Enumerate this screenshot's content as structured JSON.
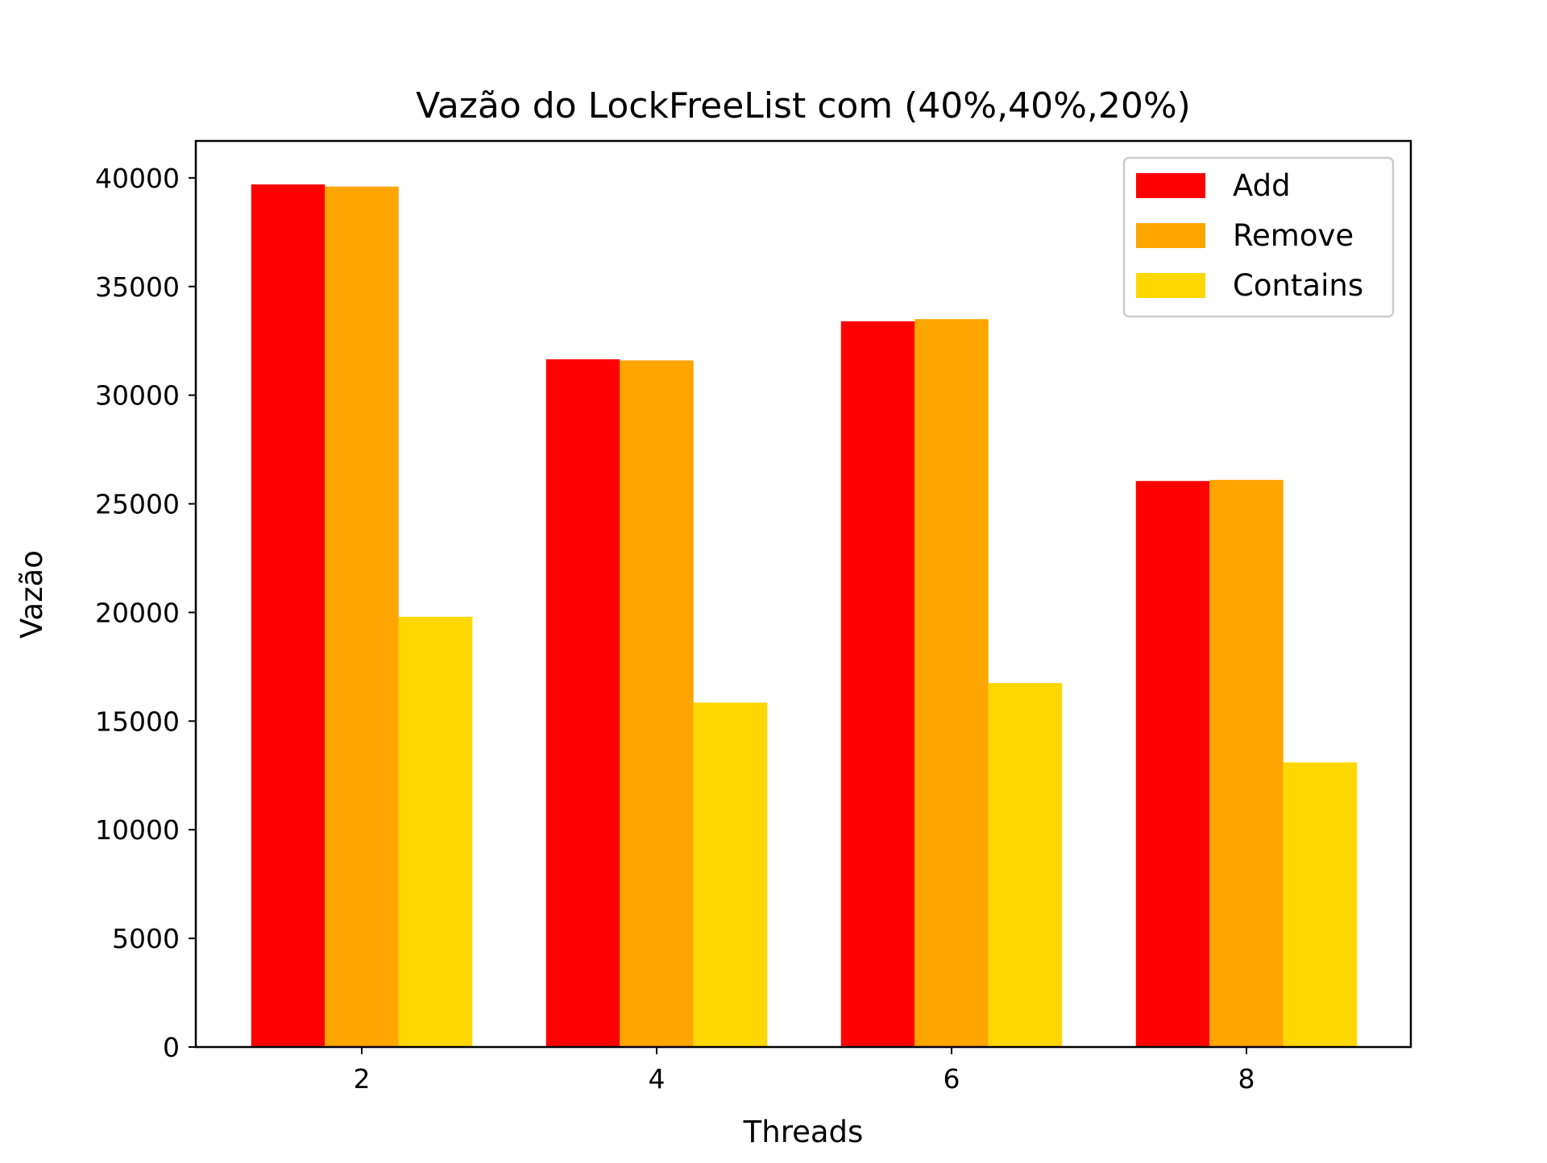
{
  "chart_data": {
    "type": "bar",
    "title": "Vazão do LockFreeList com (40%,40%,20%)",
    "xlabel": "Threads",
    "ylabel": "Vazão",
    "categories": [
      "2",
      "4",
      "6",
      "8"
    ],
    "series": [
      {
        "name": "Add",
        "color": "#ff0000",
        "values": [
          39700,
          31650,
          33400,
          26050
        ]
      },
      {
        "name": "Remove",
        "color": "#ffa500",
        "values": [
          39600,
          31600,
          33500,
          26100
        ]
      },
      {
        "name": "Contains",
        "color": "#ffd700",
        "values": [
          19800,
          15850,
          16750,
          13100
        ]
      }
    ],
    "ylim": [
      0,
      41700
    ],
    "yticks": [
      "0",
      "5000",
      "10000",
      "15000",
      "20000",
      "25000",
      "30000",
      "35000",
      "40000"
    ],
    "grid": false,
    "legend_position": "top-right"
  }
}
